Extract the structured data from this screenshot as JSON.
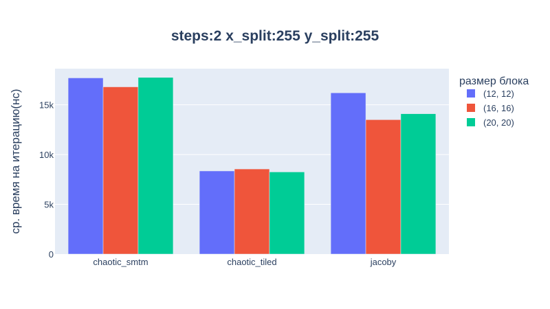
{
  "chart_data": {
    "type": "bar",
    "title": "steps:2 x_split:255 y_split:255",
    "xlabel": "",
    "ylabel": "ср. время на итерацию(нс)",
    "categories": [
      "chaotic_smtm",
      "chaotic_tiled",
      "jacoby"
    ],
    "series": [
      {
        "name": "(12, 12)",
        "color": "#636efa",
        "values": [
          17700,
          8350,
          16200
        ]
      },
      {
        "name": "(16, 16)",
        "color": "#ef553b",
        "values": [
          16800,
          8550,
          13500
        ]
      },
      {
        "name": "(20, 20)",
        "color": "#00cc96",
        "values": [
          17750,
          8250,
          14100
        ]
      }
    ],
    "ylim": [
      0,
      18630
    ],
    "yticks": [
      0,
      5000,
      10000,
      15000
    ],
    "ytick_labels": [
      "0",
      "5k",
      "10k",
      "15k"
    ],
    "legend_title": "размер блока",
    "legend_position": "top-right",
    "grid": true,
    "plot_bgcolor": "#e5ecf6",
    "text_color": "#2a3f5f"
  }
}
